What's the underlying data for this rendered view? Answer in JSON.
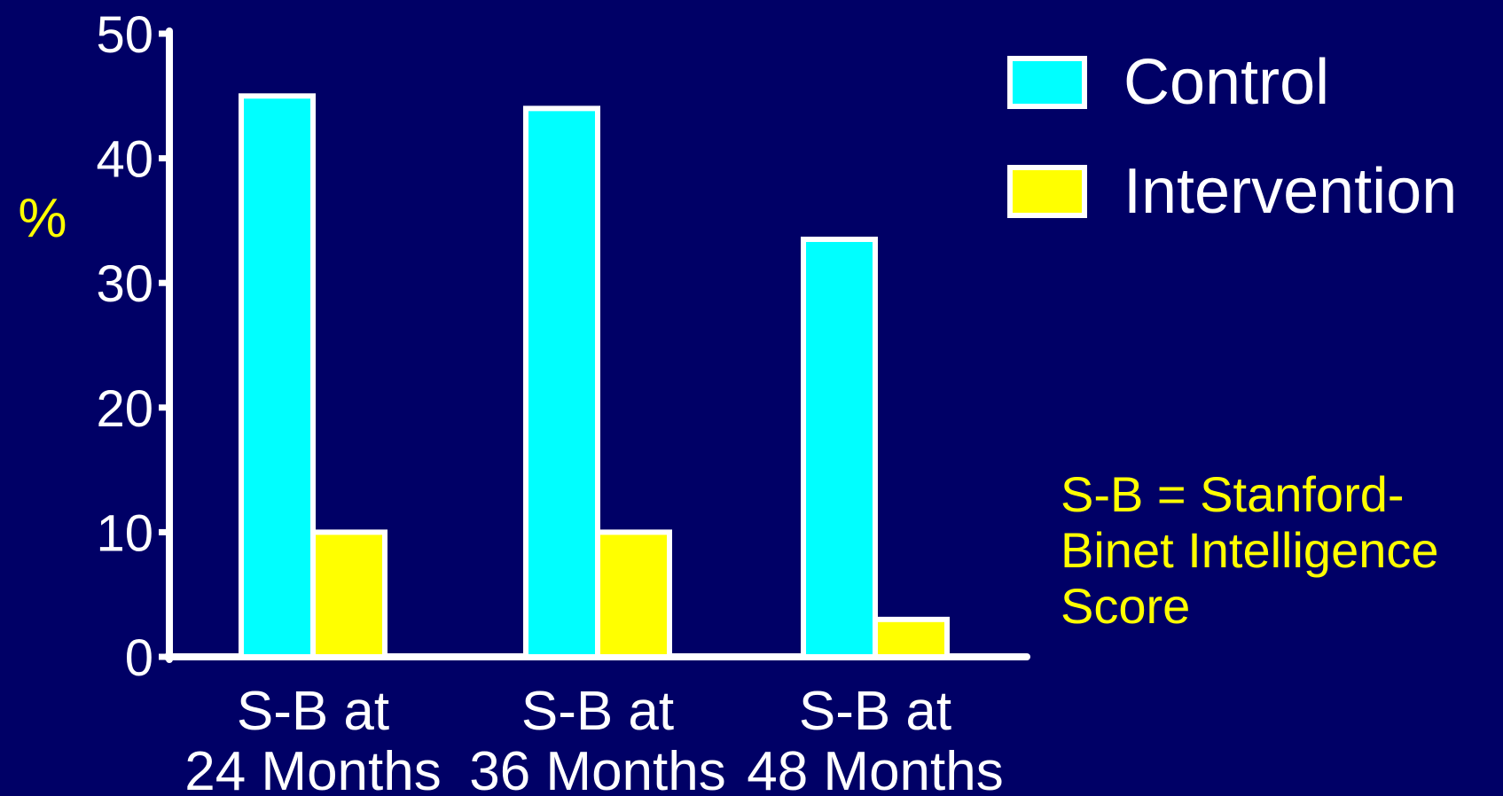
{
  "chart_data": {
    "type": "bar",
    "title": "",
    "ylabel": "%",
    "xlabel": "",
    "ylim": [
      0,
      50
    ],
    "yticks": [
      0,
      10,
      20,
      30,
      40,
      50
    ],
    "categories": [
      [
        "S-B at",
        "24 Months"
      ],
      [
        "S-B at",
        "36 Months"
      ],
      [
        "S-B at",
        "48 Months"
      ]
    ],
    "series": [
      {
        "name": "Control",
        "color": "#00ffff",
        "values": [
          45,
          44,
          33.5
        ]
      },
      {
        "name": "Intervention",
        "color": "#ffff00",
        "values": [
          10,
          10,
          3
        ]
      }
    ],
    "legend_position": "top-right",
    "grid": false,
    "axis_color": "#ffffff",
    "background": "#000066",
    "footnote": "S-B = Stanford-\nBinet Intelligence\nScore"
  }
}
